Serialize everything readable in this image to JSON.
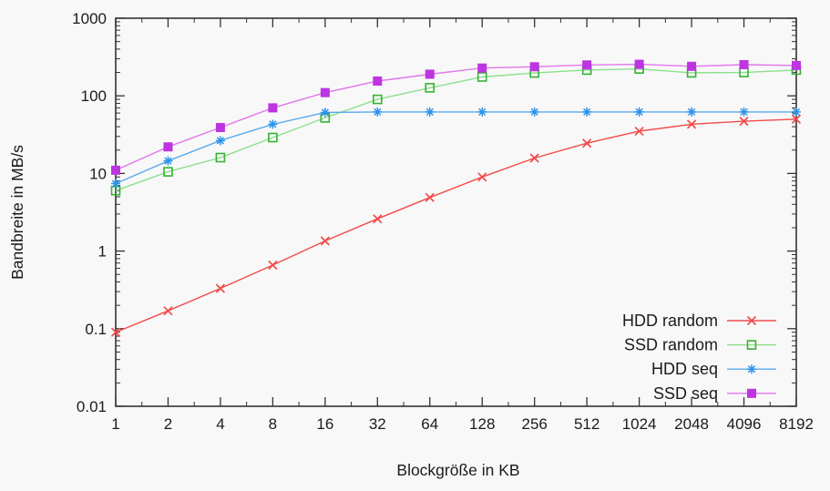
{
  "chart_data": {
    "type": "line",
    "title": "",
    "xlabel": "Blockgröße in KB",
    "ylabel": "Bandbreite in MB/s",
    "x_scale": "log2",
    "y_scale": "log10",
    "xlim": [
      1,
      8192
    ],
    "ylim": [
      0.01,
      1000
    ],
    "grid": false,
    "legend_position": "inside-bottom-right",
    "categories": [
      1,
      2,
      4,
      8,
      16,
      32,
      64,
      128,
      256,
      512,
      1024,
      2048,
      4096,
      8192
    ],
    "x_tick_labels": [
      "1",
      "2",
      "4",
      "8",
      "16",
      "32",
      "64",
      "128",
      "256",
      "512",
      "1024",
      "2048",
      "4096",
      "8192"
    ],
    "y_tick_labels": [
      "1000",
      "100",
      "10",
      "1",
      "0.1",
      "0.01"
    ],
    "y_tick_values": [
      1000,
      100,
      10,
      1,
      0.1,
      0.01
    ],
    "y_minor_multiples": [
      2,
      3,
      4,
      5,
      6,
      7,
      8,
      9
    ],
    "series": [
      {
        "name": "HDD random",
        "marker": "cross",
        "line_color": "#f24a4a",
        "marker_color": "#f24a4a",
        "values": [
          0.09,
          0.17,
          0.33,
          0.66,
          1.35,
          2.6,
          4.9,
          9,
          15.8,
          24.5,
          35,
          43,
          47,
          50
        ]
      },
      {
        "name": "SSD random",
        "marker": "open-square",
        "line_color": "#8ce08c",
        "marker_color": "#35b235",
        "values": [
          6.0,
          10.5,
          16,
          29,
          52,
          90,
          127,
          175,
          197,
          215,
          222,
          198,
          200,
          215
        ]
      },
      {
        "name": "HDD seq",
        "marker": "asterisk",
        "line_color": "#5aabef",
        "marker_color": "#2e93ea",
        "values": [
          7.4,
          14.5,
          26.5,
          43,
          61,
          62,
          62,
          62,
          62,
          62,
          62,
          62,
          62,
          62
        ]
      },
      {
        "name": "SSD seq",
        "marker": "filled-square",
        "line_color": "#e176ec",
        "marker_color": "#bd35e0",
        "values": [
          11,
          22,
          39,
          70,
          110,
          155,
          190,
          228,
          237,
          250,
          255,
          240,
          252,
          246
        ]
      }
    ]
  },
  "colors": {
    "background": "#f8f8f8",
    "axis": "#333333",
    "text": "#1b1b1b"
  }
}
